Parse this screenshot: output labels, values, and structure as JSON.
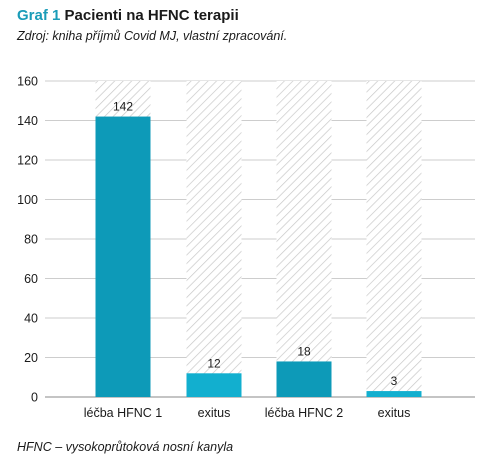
{
  "figure": {
    "label": "Graf 1",
    "title": "Pacienti na HFNC terapii",
    "source": "Zdroj: kniha příjmů Covid MJ, vlastní zpracování.",
    "footnote": "HFNC – vysokoprůtoková nosní kanyla"
  },
  "colors": {
    "label": "#1a9cb8",
    "bar_dark": "#0d9ab8",
    "bar_light": "#12afcf",
    "hatch": "#c8c8c8",
    "grid": "#bcbcbc"
  },
  "chart_data": {
    "type": "bar",
    "categories": [
      "léčba HFNC 1",
      "exitus",
      "léčba HFNC 2",
      "exitus"
    ],
    "values": [
      142,
      12,
      18,
      3
    ],
    "ylim": [
      0,
      160
    ],
    "yticks": [
      0,
      20,
      40,
      60,
      80,
      100,
      120,
      140,
      160
    ],
    "grid": true,
    "background_hatch_to": 160
  }
}
